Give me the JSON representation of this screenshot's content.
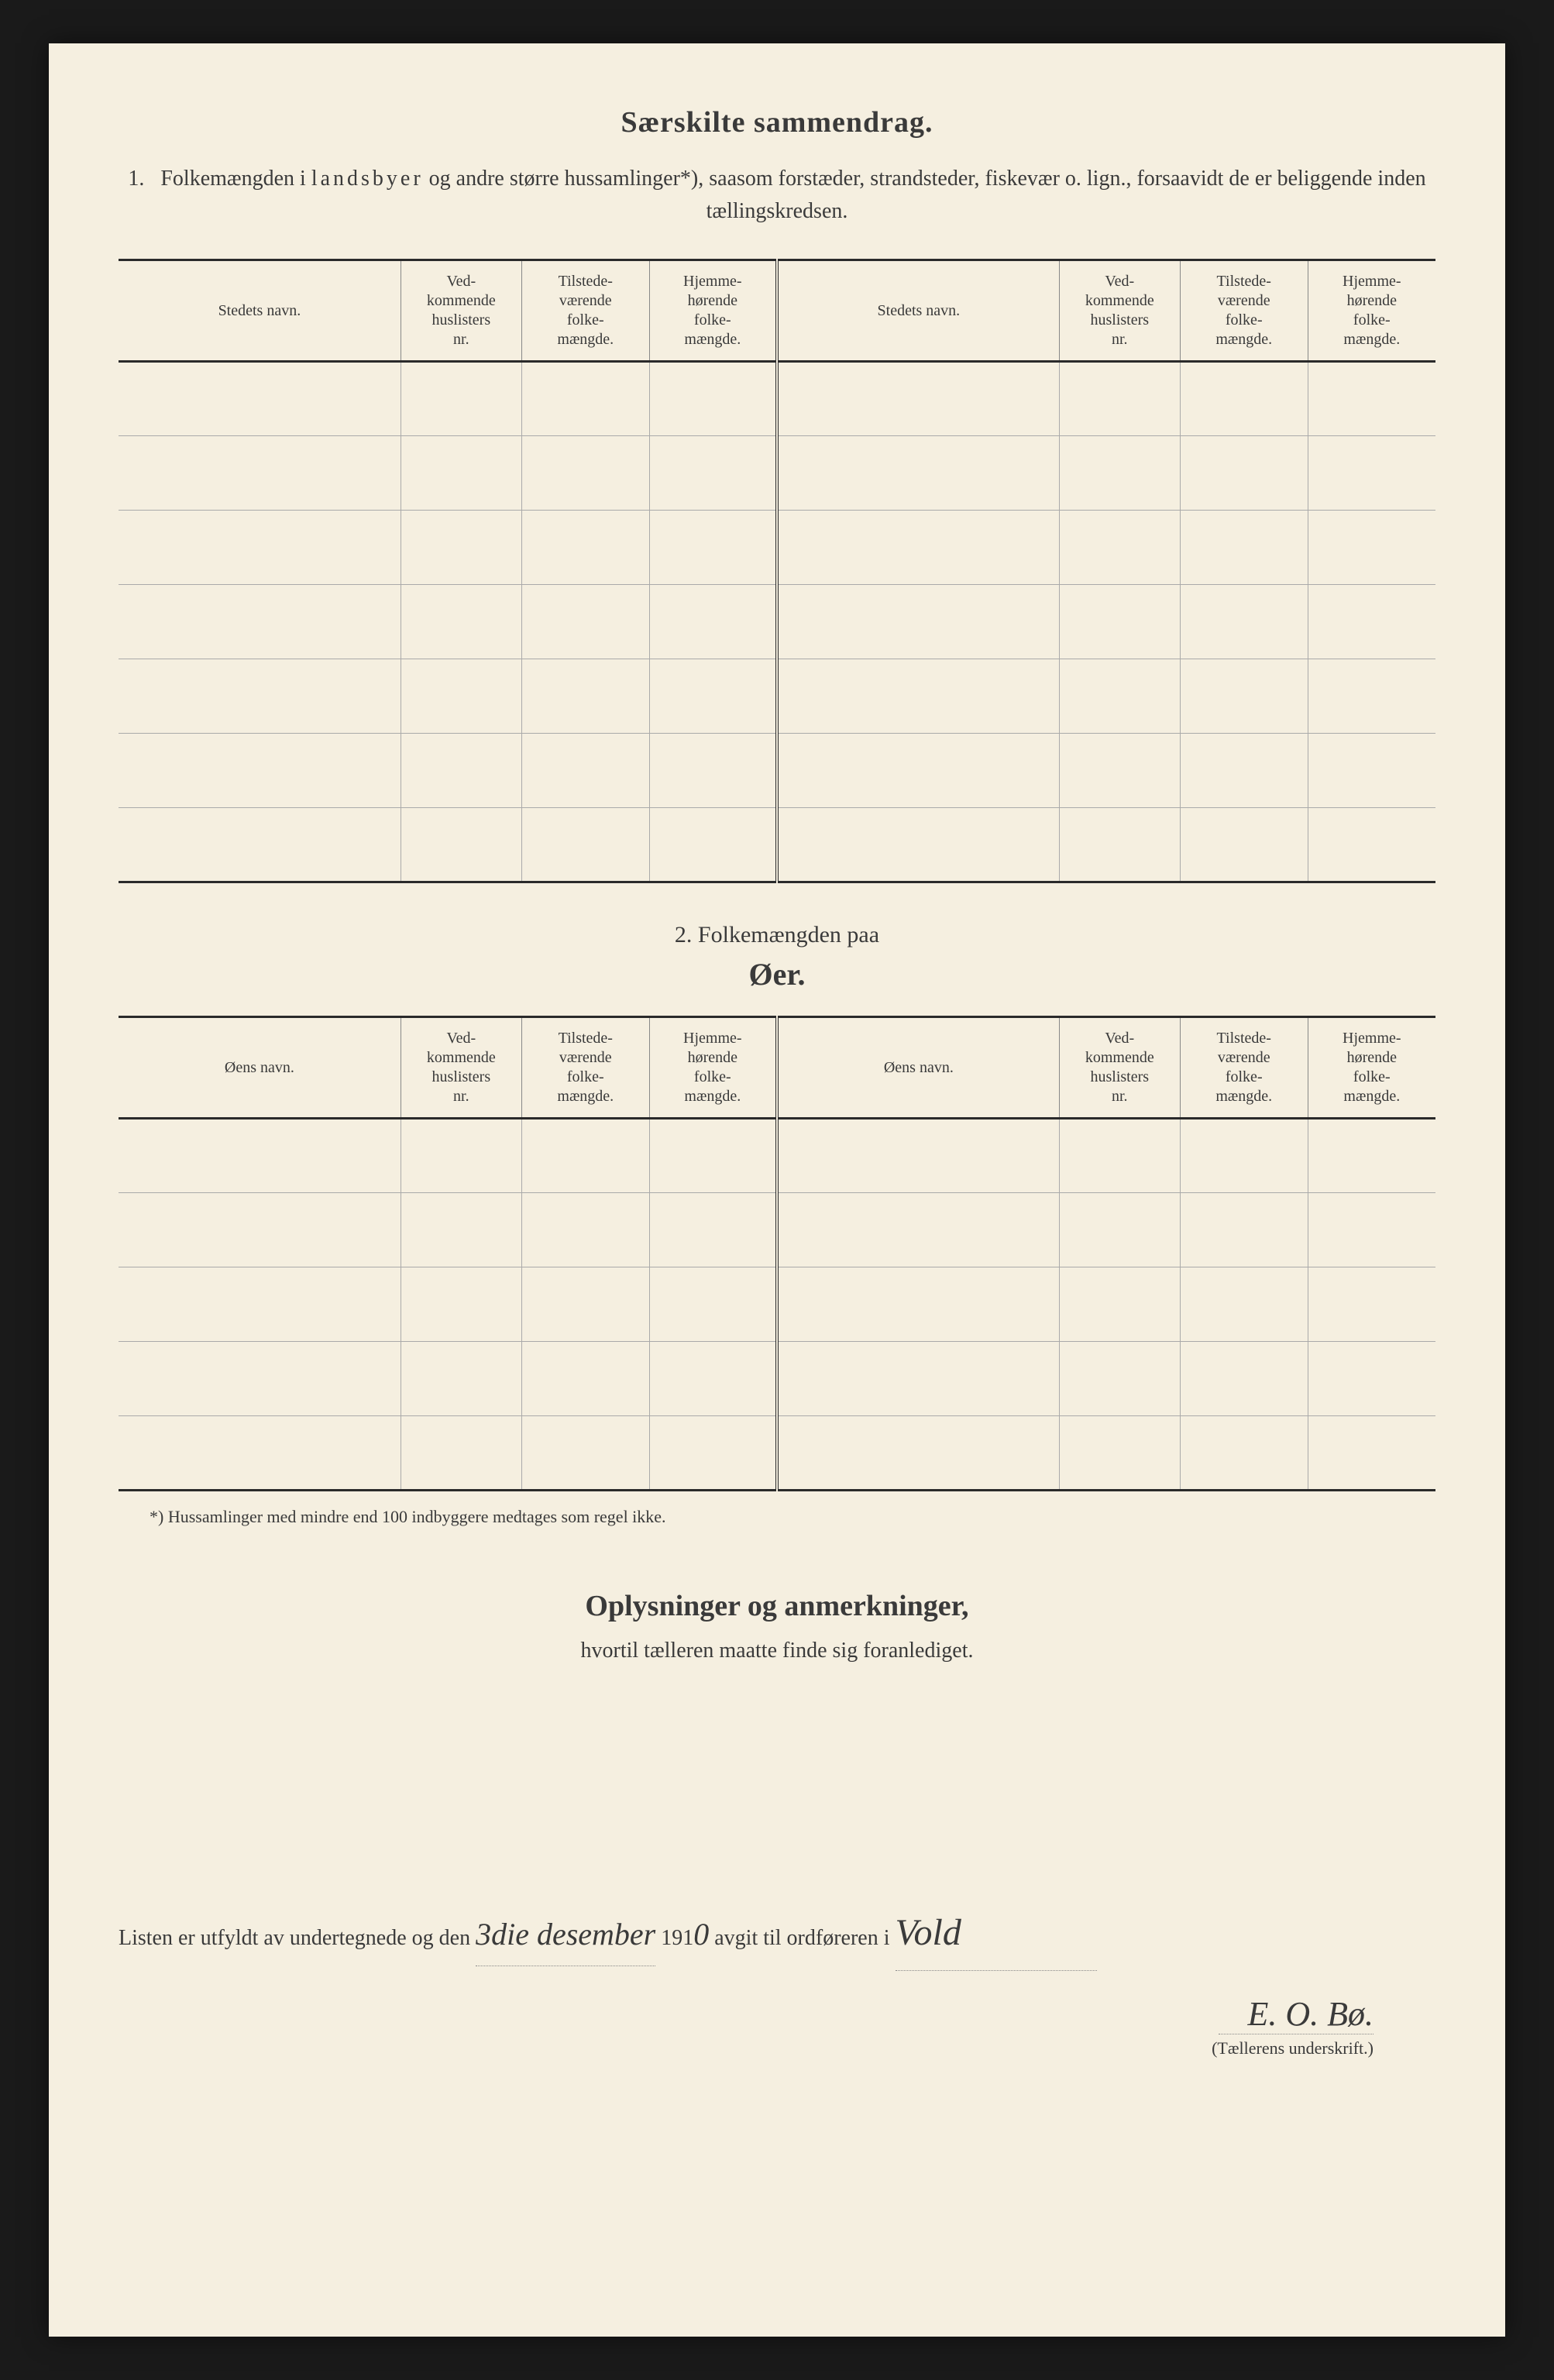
{
  "title": "Særskilte sammendrag.",
  "section1": {
    "number": "1.",
    "text_before": "Folkemængden i ",
    "spaced_word": "landsbyer",
    "text_after": " og andre større hussamlinger*), saasom forstæder, strandsteder, fiskevær o. lign., forsaavidt de er beliggende inden tællingskredsen."
  },
  "table_headers": {
    "place_name": "Stedets navn.",
    "island_name": "Øens navn.",
    "col2": "Ved-\nkommende\nhuslisters\nnr.",
    "col3": "Tilstede-\nværende\nfolke-\nmængde.",
    "col4": "Hjemme-\nhørende\nfolke-\nmængde."
  },
  "table1_rows": 7,
  "section2": {
    "label": "2.    Folkemængden paa",
    "title": "Øer."
  },
  "table2_rows": 5,
  "footnote": "*)   Hussamlinger med mindre end 100 indbyggere medtages som regel ikke.",
  "remarks": {
    "title": "Oplysninger og anmerkninger,",
    "subtitle": "hvortil tælleren maatte finde sig foranlediget."
  },
  "signoff": {
    "text1": "Listen er utfyldt av undertegnede og den ",
    "date_hand": "3die  desember",
    "year_print": " 191",
    "year_hand": "0",
    "text2": " avgit til ordføreren i ",
    "place_hand": "Vold"
  },
  "signature": {
    "name": "E. O. Bø.",
    "label": "(Tællerens underskrift.)"
  },
  "colors": {
    "page_bg": "#f5efe0",
    "outer_bg": "#1a1a1a",
    "text": "#3a3a3a",
    "rule_heavy": "#2a2a2a",
    "rule_light": "#aaa"
  }
}
